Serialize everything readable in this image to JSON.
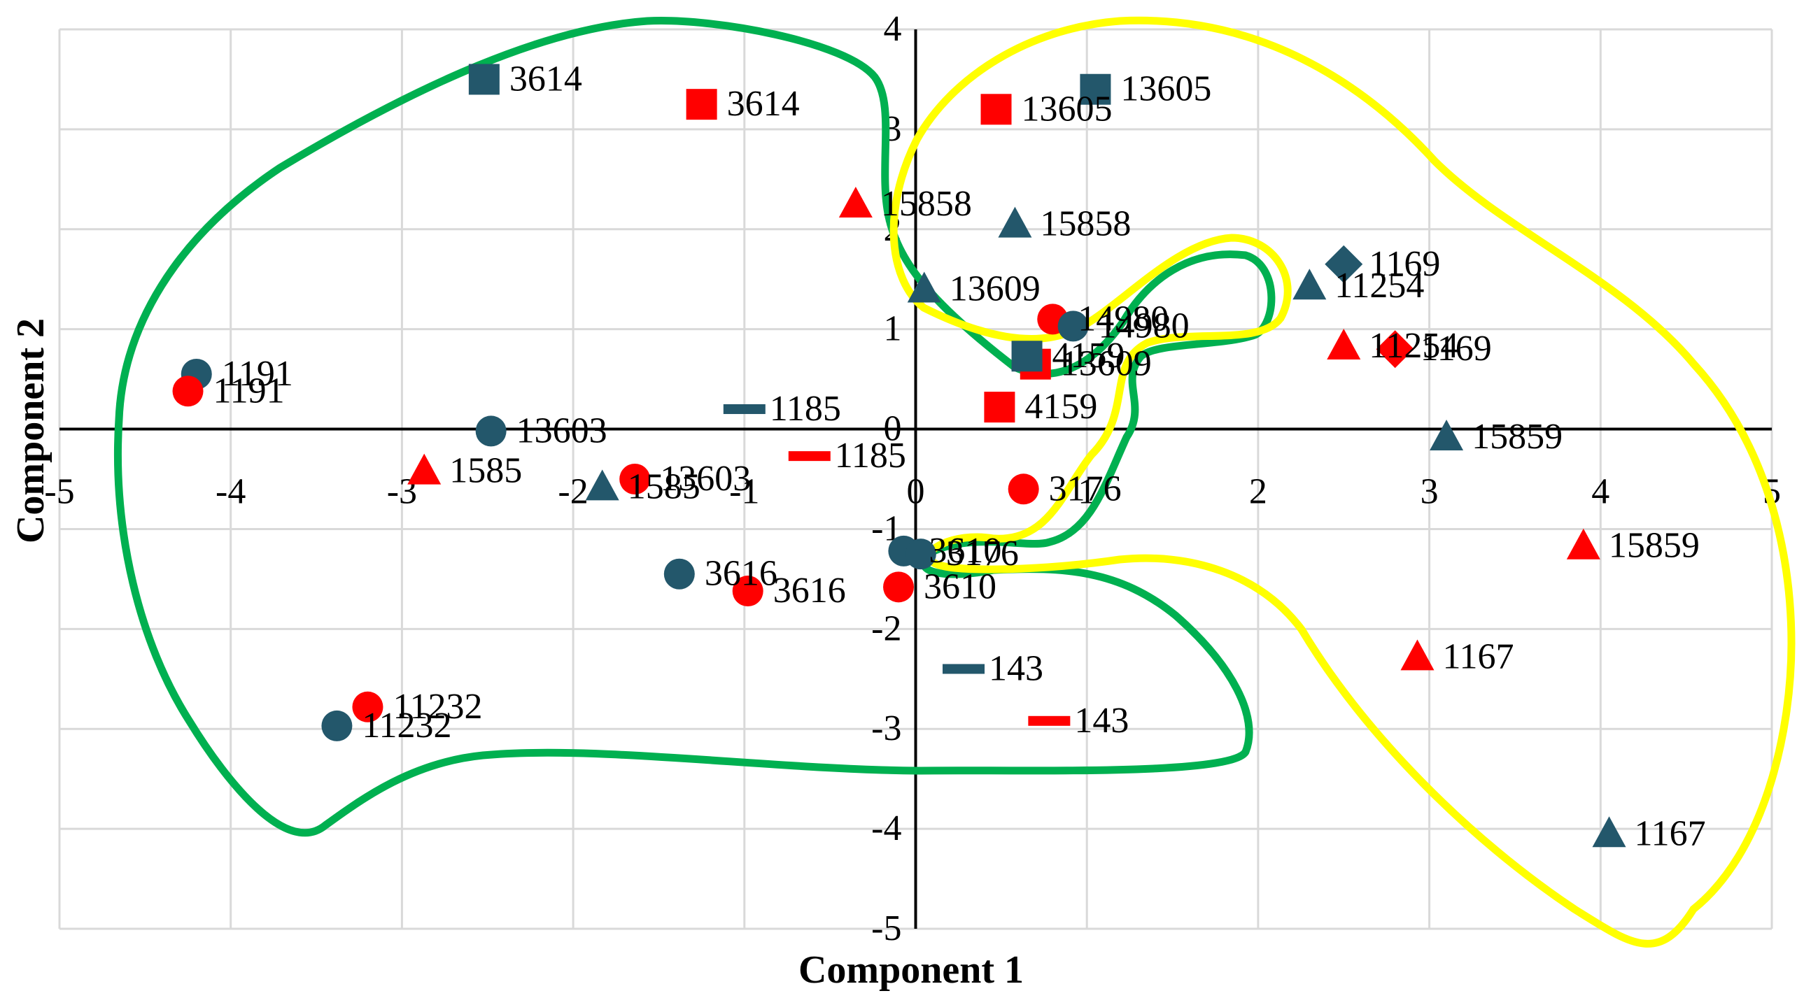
{
  "chart_data": {
    "type": "scatter",
    "title": "",
    "xlabel": "Component 1",
    "ylabel": "Component 2",
    "xlim": [
      -5,
      5
    ],
    "ylim": [
      -5,
      4
    ],
    "xticks": [
      -5,
      -4,
      -3,
      -2,
      -1,
      0,
      1,
      2,
      3,
      4,
      5
    ],
    "yticks": [
      -5,
      -4,
      -3,
      -2,
      -1,
      0,
      1,
      2,
      3,
      4
    ],
    "grid": true,
    "legend": "none",
    "colors": {
      "dark": "#23576b",
      "red": "#ff0000",
      "green": "#00b050",
      "yellow": "#ffff00"
    },
    "points": [
      {
        "x": -2.52,
        "y": 3.5,
        "shape": "square",
        "color": "dark",
        "label": "3614"
      },
      {
        "x": -1.25,
        "y": 3.25,
        "shape": "square",
        "color": "red",
        "label": "3614"
      },
      {
        "x": 1.05,
        "y": 3.4,
        "shape": "square",
        "color": "dark",
        "label": "13605"
      },
      {
        "x": 0.47,
        "y": 3.2,
        "shape": "square",
        "color": "red",
        "label": "13605"
      },
      {
        "x": -0.35,
        "y": 2.25,
        "shape": "triangle",
        "color": "red",
        "label": "15858"
      },
      {
        "x": 0.58,
        "y": 2.05,
        "shape": "triangle",
        "color": "dark",
        "label": "15858"
      },
      {
        "x": 0.05,
        "y": 1.4,
        "shape": "triangle",
        "color": "dark",
        "label": "13609"
      },
      {
        "x": 0.8,
        "y": 1.1,
        "shape": "circle",
        "color": "red",
        "label": "14980"
      },
      {
        "x": 0.92,
        "y": 1.03,
        "shape": "circle",
        "color": "dark",
        "label": "14980"
      },
      {
        "x": 0.7,
        "y": 0.65,
        "shape": "square",
        "color": "red",
        "label": "13609"
      },
      {
        "x": 0.65,
        "y": 0.73,
        "shape": "square",
        "color": "dark",
        "label": "4159"
      },
      {
        "x": 0.49,
        "y": 0.22,
        "shape": "square",
        "color": "red",
        "label": "4159"
      },
      {
        "x": 2.5,
        "y": 1.65,
        "shape": "diamond",
        "color": "dark",
        "label": "1169"
      },
      {
        "x": 2.3,
        "y": 1.43,
        "shape": "triangle",
        "color": "dark",
        "label": "11254"
      },
      {
        "x": 2.5,
        "y": 0.83,
        "shape": "triangle",
        "color": "red",
        "label": "11254"
      },
      {
        "x": 2.8,
        "y": 0.8,
        "shape": "diamond",
        "color": "red",
        "label": "1169"
      },
      {
        "x": 3.1,
        "y": -0.08,
        "shape": "triangle",
        "color": "dark",
        "label": "15859"
      },
      {
        "x": 3.9,
        "y": -1.17,
        "shape": "triangle",
        "color": "red",
        "label": "15859"
      },
      {
        "x": 2.93,
        "y": -2.28,
        "shape": "triangle",
        "color": "red",
        "label": "1167"
      },
      {
        "x": 4.05,
        "y": -4.05,
        "shape": "triangle",
        "color": "dark",
        "label": "1167"
      },
      {
        "x": -4.2,
        "y": 0.55,
        "shape": "circle",
        "color": "dark",
        "label": "1191"
      },
      {
        "x": -4.25,
        "y": 0.38,
        "shape": "circle",
        "color": "red",
        "label": "1191"
      },
      {
        "x": -2.48,
        "y": -0.02,
        "shape": "circle",
        "color": "dark",
        "label": "13603"
      },
      {
        "x": -1.64,
        "y": -0.5,
        "shape": "circle",
        "color": "red",
        "label": "13603"
      },
      {
        "x": -2.87,
        "y": -0.42,
        "shape": "triangle",
        "color": "red",
        "label": "1585"
      },
      {
        "x": -1.83,
        "y": -0.58,
        "shape": "triangle",
        "color": "dark",
        "label": "1585"
      },
      {
        "x": -1.0,
        "y": 0.2,
        "shape": "dash",
        "color": "dark",
        "label": "1185"
      },
      {
        "x": -0.62,
        "y": -0.27,
        "shape": "dash",
        "color": "red",
        "label": "1185"
      },
      {
        "x": -1.38,
        "y": -1.45,
        "shape": "circle",
        "color": "dark",
        "label": "3616"
      },
      {
        "x": -0.98,
        "y": -1.62,
        "shape": "circle",
        "color": "red",
        "label": "3616"
      },
      {
        "x": 0.63,
        "y": -0.6,
        "shape": "circle",
        "color": "red",
        "label": "3176"
      },
      {
        "x": -0.07,
        "y": -1.22,
        "shape": "circle",
        "color": "dark",
        "label": "3610"
      },
      {
        "x": 0.03,
        "y": -1.25,
        "shape": "circle",
        "color": "dark",
        "label": "3176"
      },
      {
        "x": -0.1,
        "y": -1.58,
        "shape": "circle",
        "color": "red",
        "label": "3610"
      },
      {
        "x": 0.28,
        "y": -2.4,
        "shape": "dash",
        "color": "dark",
        "label": "143"
      },
      {
        "x": 0.78,
        "y": -2.92,
        "shape": "dash",
        "color": "red",
        "label": "143"
      },
      {
        "x": -3.2,
        "y": -2.78,
        "shape": "circle",
        "color": "red",
        "label": "11232"
      },
      {
        "x": -3.38,
        "y": -2.97,
        "shape": "circle",
        "color": "dark",
        "label": "11232"
      }
    ]
  }
}
